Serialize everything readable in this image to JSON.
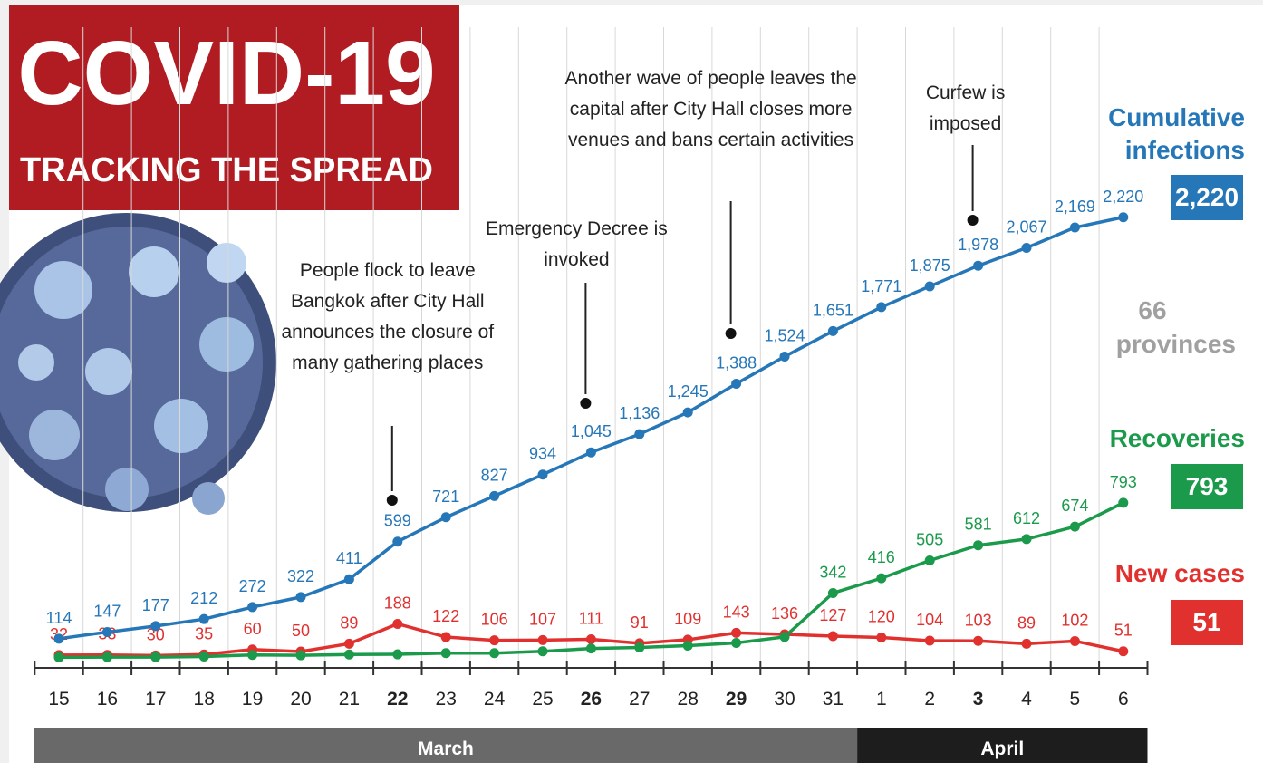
{
  "header": {
    "title": "COVID-19",
    "subtitle": "TRACKING THE SPREAD"
  },
  "chart_data": {
    "type": "line",
    "categories": [
      "15",
      "16",
      "17",
      "18",
      "19",
      "20",
      "21",
      "22",
      "23",
      "24",
      "25",
      "26",
      "27",
      "28",
      "29",
      "30",
      "31",
      "1",
      "2",
      "3",
      "4",
      "5",
      "6"
    ],
    "months": [
      {
        "name": "March",
        "start": "15",
        "end": "31"
      },
      {
        "name": "April",
        "start": "1",
        "end": "6"
      }
    ],
    "ylim": [
      0,
      2400
    ],
    "grid": true,
    "series": [
      {
        "name": "Cumulative infections",
        "color": "#2677b8",
        "values": [
          114,
          147,
          177,
          212,
          272,
          322,
          411,
          599,
          721,
          827,
          934,
          1045,
          1136,
          1245,
          1388,
          1524,
          1651,
          1771,
          1875,
          1978,
          2067,
          2169,
          2220
        ],
        "value_labels": [
          "114",
          "147",
          "177",
          "212",
          "272",
          "322",
          "411",
          "599",
          "721",
          "827",
          "934",
          "1,045",
          "1,136",
          "1,245",
          "1,388",
          "1,524",
          "1,651",
          "1,771",
          "1,875",
          "1,978",
          "2,067",
          "2,169",
          "2,220"
        ]
      },
      {
        "name": "Recoveries",
        "color": "#1a9a4a",
        "values": [
          21,
          22,
          22,
          25,
          33,
          31,
          35,
          36,
          42,
          42,
          51,
          65,
          70,
          79,
          93,
          123,
          342,
          416,
          505,
          581,
          612,
          674,
          793
        ],
        "value_labels": [
          null,
          null,
          null,
          null,
          null,
          null,
          null,
          null,
          null,
          null,
          null,
          null,
          null,
          null,
          null,
          null,
          "342",
          "416",
          "505",
          "581",
          "612",
          "674",
          "793"
        ]
      },
      {
        "name": "New cases",
        "color": "#e0312f",
        "values": [
          32,
          33,
          30,
          35,
          60,
          50,
          89,
          188,
          122,
          106,
          107,
          111,
          91,
          109,
          143,
          136,
          127,
          120,
          104,
          103,
          89,
          102,
          51
        ]
      }
    ],
    "annotations": [
      {
        "x": "22",
        "text": "People flock to leave Bangkok after City Hall announces the closure of many gathering places"
      },
      {
        "x": "26",
        "text": "Emergency Decree is invoked"
      },
      {
        "x": "29",
        "text": "Another wave of people leaves the capital after City Hall closes more venues and bans certain activities"
      },
      {
        "x": "3",
        "text": "Curfew is imposed"
      }
    ],
    "provinces": {
      "count": 66,
      "label": "provinces"
    }
  }
}
